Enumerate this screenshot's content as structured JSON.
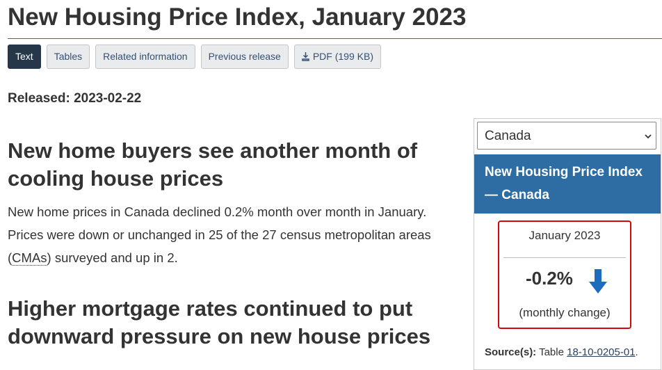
{
  "page": {
    "title": "New Housing Price Index, January 2023",
    "tabs": [
      "Text",
      "Tables",
      "Related information",
      "Previous release",
      "PDF (199 KB)"
    ],
    "released": {
      "label": "Released:",
      "date": "2023-02-22"
    },
    "headline": "New home buyers see another month of cooling house prices",
    "paragraph": {
      "before": "New home prices in Canada declined 0.2% month over month in January. Prices were down or unchanged in 25 of the 27 census metropolitan areas (",
      "abbr": "CMAs",
      "after": ") surveyed and up in 2."
    },
    "heading2": "Higher mortgage rates continued to put downward pressure on new house prices",
    "sidebar": {
      "select": "Canada",
      "panel_title": "New Housing Price Index — Canada",
      "period": "January 2023",
      "change": "-0.2%",
      "change_label": "(monthly change)",
      "source": {
        "label": "Source(s):",
        "text": "Table",
        "link": "18-10-0205-01",
        "end": "."
      }
    }
  }
}
